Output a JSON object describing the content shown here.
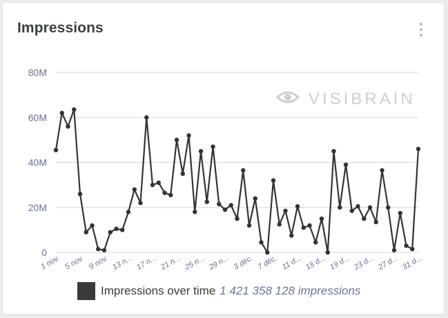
{
  "card": {
    "title": "Impressions"
  },
  "watermark": {
    "text": "VISIBRAIN"
  },
  "legend": {
    "label": "Impressions over time",
    "total": "1 421 358 128 impressions"
  },
  "colors": {
    "series": "#333333",
    "grid": "#d6d6d6",
    "axis_text": "#666e96",
    "watermark": "#cfcfcf"
  },
  "chart_data": {
    "type": "line",
    "title": "Impressions",
    "series_name": "Impressions over time",
    "ylim": [
      0,
      80000000
    ],
    "y_ticks": [
      {
        "value": 0,
        "label": "0"
      },
      {
        "value": 20000000,
        "label": "20M"
      },
      {
        "value": 40000000,
        "label": "40M"
      },
      {
        "value": 60000000,
        "label": "60M"
      },
      {
        "value": 80000000,
        "label": "80M"
      }
    ],
    "x_ticks": [
      {
        "index": 0,
        "label": "1 nov."
      },
      {
        "index": 4,
        "label": "5 nov."
      },
      {
        "index": 8,
        "label": "9 nov."
      },
      {
        "index": 12,
        "label": "13 n..."
      },
      {
        "index": 16,
        "label": "17 n..."
      },
      {
        "index": 20,
        "label": "21 n..."
      },
      {
        "index": 24,
        "label": "25 n..."
      },
      {
        "index": 28,
        "label": "29 n..."
      },
      {
        "index": 32,
        "label": "3 déc."
      },
      {
        "index": 36,
        "label": "7 déc."
      },
      {
        "index": 40,
        "label": "11 d..."
      },
      {
        "index": 44,
        "label": "15 d..."
      },
      {
        "index": 48,
        "label": "19 d..."
      },
      {
        "index": 52,
        "label": "23 d..."
      },
      {
        "index": 56,
        "label": "27 d..."
      },
      {
        "index": 60,
        "label": "31 d..."
      }
    ],
    "values": [
      45500000,
      62000000,
      56000000,
      63500000,
      26000000,
      9000000,
      12000000,
      1500000,
      1000000,
      9000000,
      10500000,
      10000000,
      18000000,
      28000000,
      22000000,
      60000000,
      30000000,
      31000000,
      26500000,
      25500000,
      50000000,
      35000000,
      52000000,
      18000000,
      45000000,
      22500000,
      47000000,
      21500000,
      19000000,
      21000000,
      15000000,
      36500000,
      12000000,
      24000000,
      4500000,
      0,
      32000000,
      12500000,
      18500000,
      7500000,
      20500000,
      11000000,
      12000000,
      4500000,
      15000000,
      0,
      45000000,
      20000000,
      39000000,
      18500000,
      20500000,
      15000000,
      20000000,
      13500000,
      36500000,
      20000000,
      1000000,
      17500000,
      3000000,
      1500000,
      46000000
    ]
  }
}
